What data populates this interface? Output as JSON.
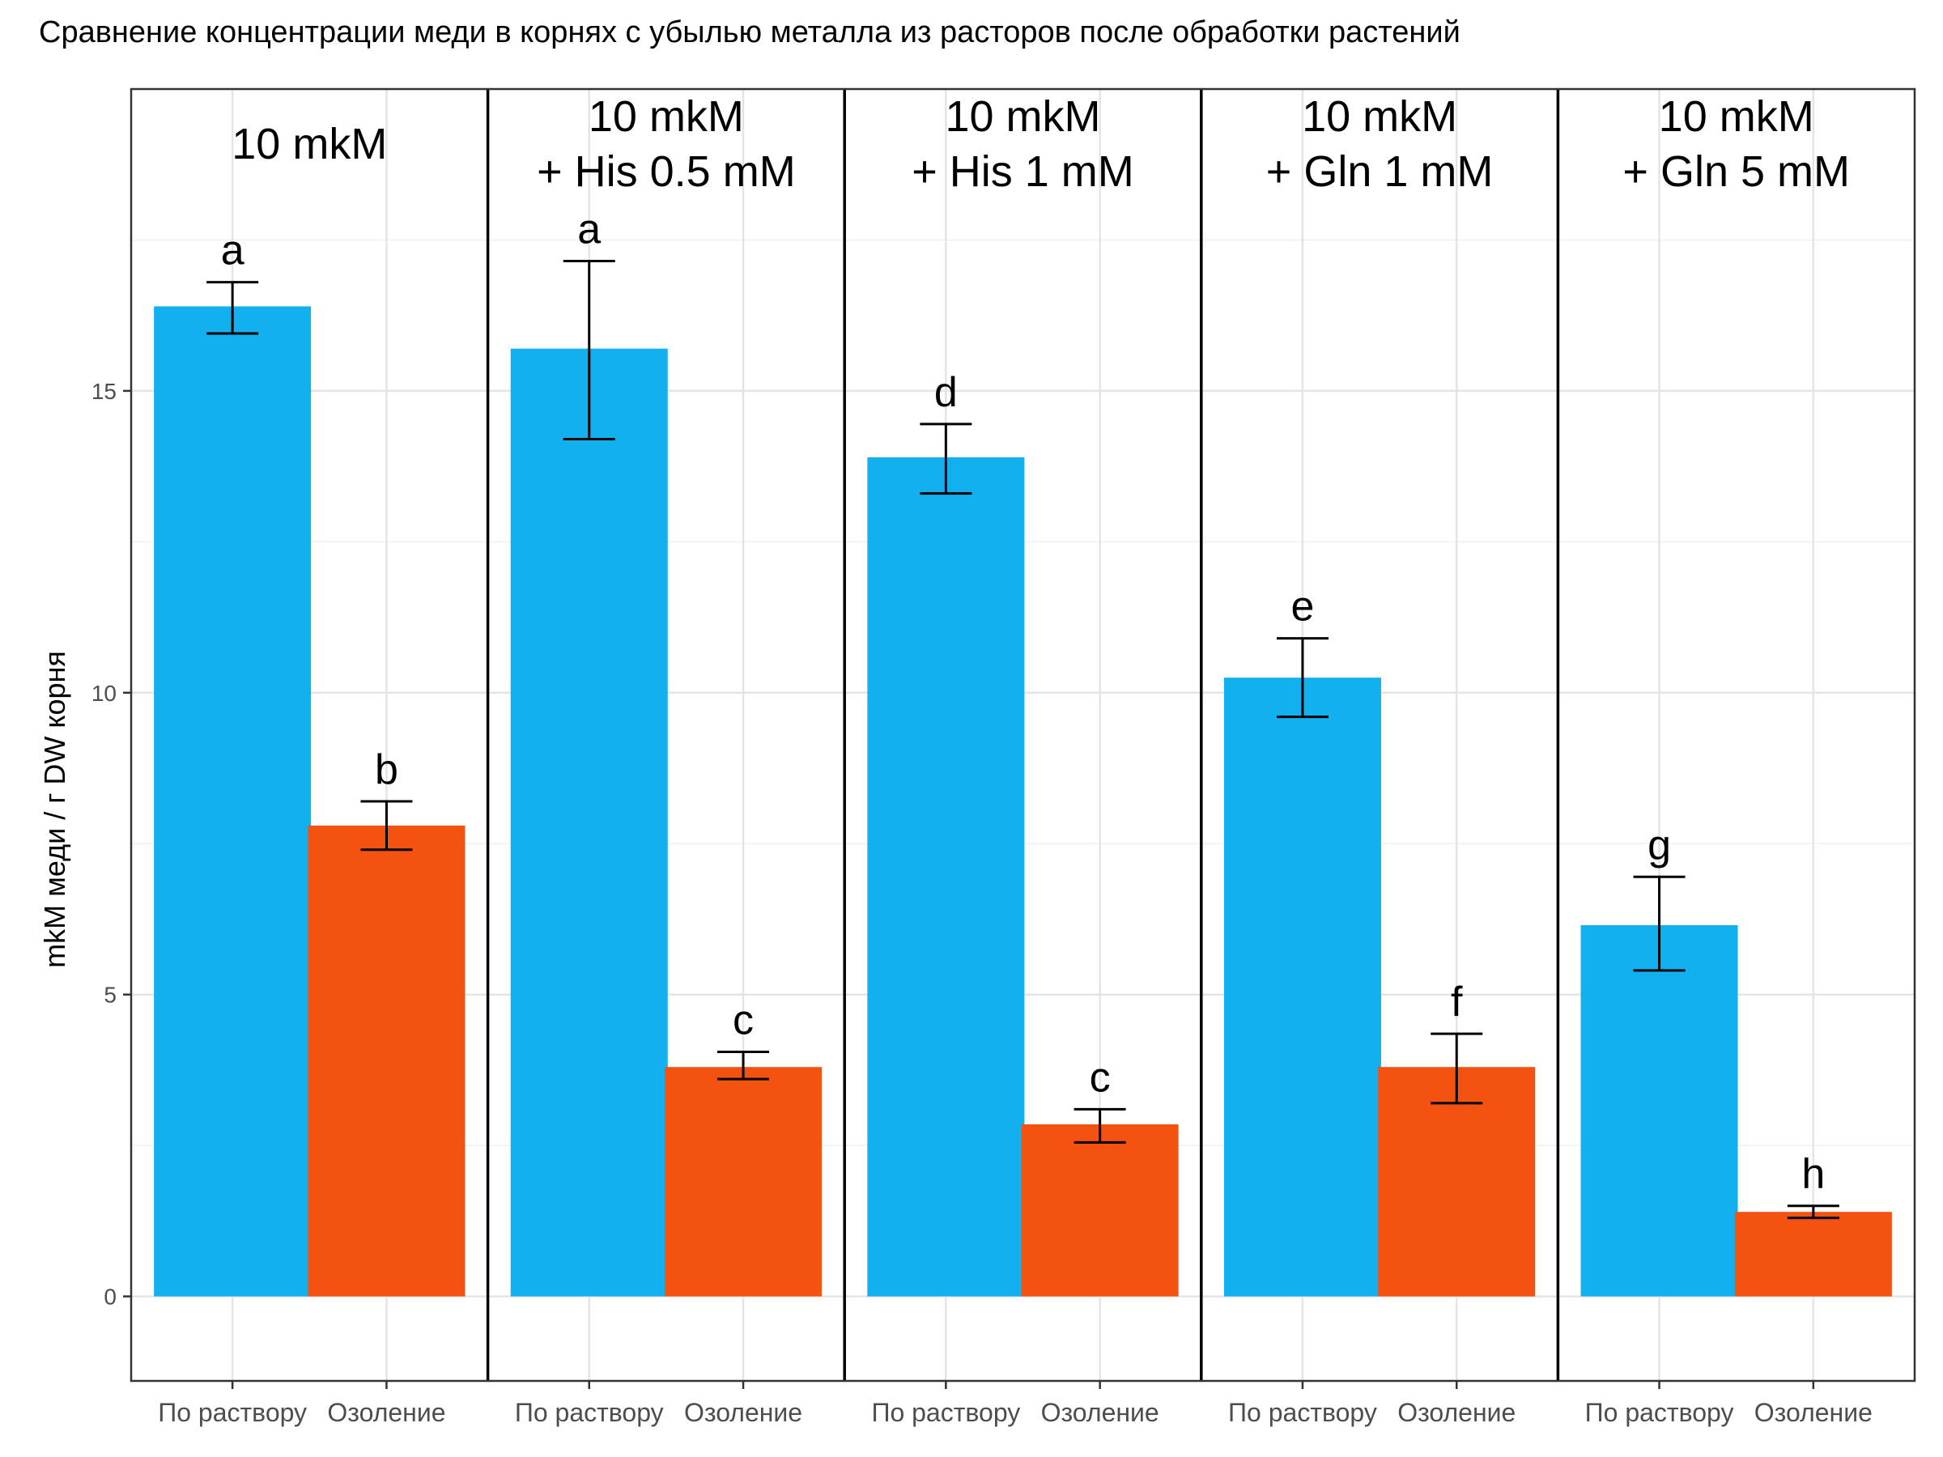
{
  "chart_data": {
    "type": "bar",
    "title": "Сравнение концентрации меди в корнях с убылью металла из расторов после обработки растений",
    "ylabel": "mkM меди / г DW корня",
    "ylim": [
      -1.4,
      20
    ],
    "yticks": [
      0,
      5,
      10,
      15
    ],
    "categories": [
      "По раствору",
      "Озоление"
    ],
    "colors": {
      "По раствору": "#13b0f0",
      "Озоление": "#f45211"
    },
    "grid": true,
    "legend": "none",
    "facets": [
      {
        "label_lines": [
          "10 mkM"
        ],
        "bars": [
          {
            "category": "По раствору",
            "value": 16.4,
            "err_low": 15.95,
            "err_high": 16.8,
            "letter": "a"
          },
          {
            "category": "Озоление",
            "value": 7.8,
            "err_low": 7.4,
            "err_high": 8.2,
            "letter": "b"
          }
        ]
      },
      {
        "label_lines": [
          "10 mkM",
          "+ His 0.5 mM"
        ],
        "bars": [
          {
            "category": "По раствору",
            "value": 15.7,
            "err_low": 14.2,
            "err_high": 17.15,
            "letter": "a"
          },
          {
            "category": "Озоление",
            "value": 3.8,
            "err_low": 3.6,
            "err_high": 4.05,
            "letter": "c"
          }
        ]
      },
      {
        "label_lines": [
          "10 mkM",
          "+ His 1 mM"
        ],
        "bars": [
          {
            "category": "По раствору",
            "value": 13.9,
            "err_low": 13.3,
            "err_high": 14.45,
            "letter": "d"
          },
          {
            "category": "Озоление",
            "value": 2.85,
            "err_low": 2.55,
            "err_high": 3.1,
            "letter": "c"
          }
        ]
      },
      {
        "label_lines": [
          "10 mkM",
          "+ Gln 1 mM"
        ],
        "bars": [
          {
            "category": "По раствору",
            "value": 10.25,
            "err_low": 9.6,
            "err_high": 10.9,
            "letter": "e"
          },
          {
            "category": "Озоление",
            "value": 3.8,
            "err_low": 3.2,
            "err_high": 4.35,
            "letter": "f"
          }
        ]
      },
      {
        "label_lines": [
          "10 mkM",
          "+ Gln 5 mM"
        ],
        "bars": [
          {
            "category": "По раствору",
            "value": 6.15,
            "err_low": 5.4,
            "err_high": 6.95,
            "letter": "g"
          },
          {
            "category": "Озоление",
            "value": 1.4,
            "err_low": 1.3,
            "err_high": 1.5,
            "letter": "h"
          }
        ]
      }
    ]
  }
}
